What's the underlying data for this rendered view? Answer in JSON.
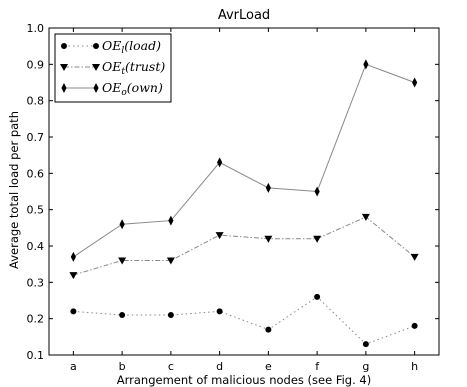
{
  "chart_data": {
    "type": "line",
    "title": "AvrLoad",
    "xlabel": "Arrangement of malicious nodes (see Fig. 4)",
    "ylabel": "Average total load per path",
    "categories": [
      "a",
      "b",
      "c",
      "d",
      "e",
      "f",
      "g",
      "h"
    ],
    "ylim": [
      0.1,
      1.0
    ],
    "yticks": [
      "0.1",
      "0.2",
      "0.3",
      "0.4",
      "0.5",
      "0.6",
      "0.7",
      "0.8",
      "0.9",
      "1.0"
    ],
    "grid": false,
    "legend_position": "top-left",
    "series": [
      {
        "name": "OE_l(load)",
        "legend_main": "OE",
        "legend_sub": "l",
        "legend_arg": "(load)",
        "values": [
          0.22,
          0.21,
          0.21,
          0.22,
          0.17,
          0.26,
          0.13,
          0.18
        ],
        "marker": "circle",
        "line_style": "dotted",
        "color": "#888888"
      },
      {
        "name": "OE_t(trust)",
        "legend_main": "OE",
        "legend_sub": "t",
        "legend_arg": "(trust)",
        "values": [
          0.32,
          0.36,
          0.36,
          0.43,
          0.42,
          0.42,
          0.48,
          0.37
        ],
        "marker": "triangle-down",
        "line_style": "dash-dot",
        "color": "#888888"
      },
      {
        "name": "OE_o(own)",
        "legend_main": "OE",
        "legend_sub": "o",
        "legend_arg": "(own)",
        "values": [
          0.37,
          0.46,
          0.47,
          0.63,
          0.56,
          0.55,
          0.9,
          0.85
        ],
        "marker": "thin-diamond",
        "line_style": "solid",
        "color": "#888888"
      }
    ]
  }
}
